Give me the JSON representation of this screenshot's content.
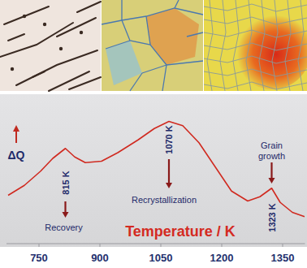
{
  "chart_data": {
    "type": "line",
    "x": [
      674,
      714,
      754,
      784,
      815,
      838,
      864,
      904,
      944,
      994,
      1034,
      1070,
      1104,
      1144,
      1184,
      1224,
      1264,
      1294,
      1323,
      1344,
      1374,
      1404
    ],
    "values": [
      34,
      41,
      51,
      60,
      67,
      61,
      57,
      58,
      64,
      73,
      81,
      86,
      83,
      71,
      54,
      37,
      30,
      33,
      39,
      29,
      22,
      19
    ],
    "color": "#d02a20",
    "xlabel": "Temperature / K",
    "ylabel": "ΔQ",
    "xlim": [
      670,
      1405
    ],
    "xticks": [
      750,
      900,
      1050,
      1200,
      1350
    ],
    "ylim": [
      0,
      100
    ],
    "tick_labels": "x",
    "annotations": [
      {
        "text": "Recovery",
        "x": 815,
        "x_label": "815 K"
      },
      {
        "text": "Recrystallization",
        "x": 1070,
        "x_label": "1070 K"
      },
      {
        "text": "Grain growth",
        "x": 1323,
        "x_label": "1323 K"
      }
    ]
  }
}
